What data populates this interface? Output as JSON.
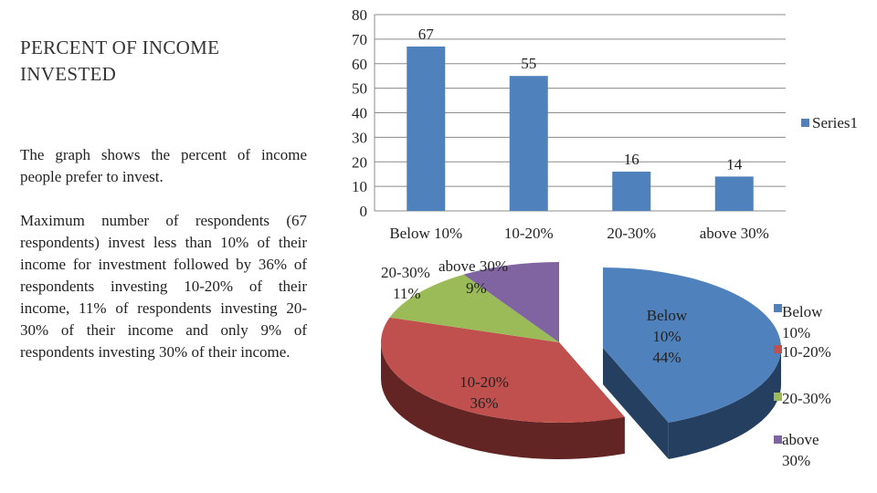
{
  "slide": {
    "title": "PERCENT OF INCOME INVESTED",
    "paragraph1": "The graph shows the percent of income people prefer to invest.",
    "paragraph2": " Maximum number of respondents (67 respondents) invest less than 10% of their income for investment followed by 36% of respondents investing 10-20% of their income, 11% of respondents investing 20-30% of their income and only 9% of respondents investing 30% of their income."
  },
  "chart_data": [
    {
      "type": "bar",
      "categories": [
        "Below 10%",
        "10-20%",
        "20-30%",
        "above 30%"
      ],
      "series": [
        {
          "name": "Series1",
          "values": [
            67,
            55,
            16,
            14
          ],
          "color": "#4F81BD"
        }
      ],
      "yticks": [
        "0",
        "10",
        "20",
        "30",
        "40",
        "50",
        "60",
        "70",
        "80"
      ],
      "ylim": [
        0,
        80
      ],
      "grid": true,
      "legend": "right"
    },
    {
      "type": "pie",
      "style": "3d-exploded",
      "categories": [
        "Below 10%",
        "10-20%",
        "20-30%",
        "above 30%"
      ],
      "values": [
        44,
        36,
        11,
        9
      ],
      "labels": [
        {
          "name": "Below",
          "name2": "10%",
          "pct": "44%"
        },
        {
          "name": "10-20%",
          "pct": "36%"
        },
        {
          "name": "20-30%",
          "pct": "11%"
        },
        {
          "name": "above 30%",
          "pct": "9%"
        }
      ],
      "legend_labels": [
        {
          "line1": "Below",
          "line2": "10%"
        },
        {
          "line1": "10-20%",
          "line2": ""
        },
        {
          "line1": "20-30%",
          "line2": ""
        },
        {
          "line1": "above",
          "line2": "30%"
        }
      ],
      "colors": [
        "#4F81BD",
        "#C0504D",
        "#9BBB59",
        "#8064A2"
      ],
      "side_colors": [
        "#243F60",
        "#632523",
        "#4F6228",
        "#3F3151"
      ],
      "legend": "right"
    }
  ]
}
